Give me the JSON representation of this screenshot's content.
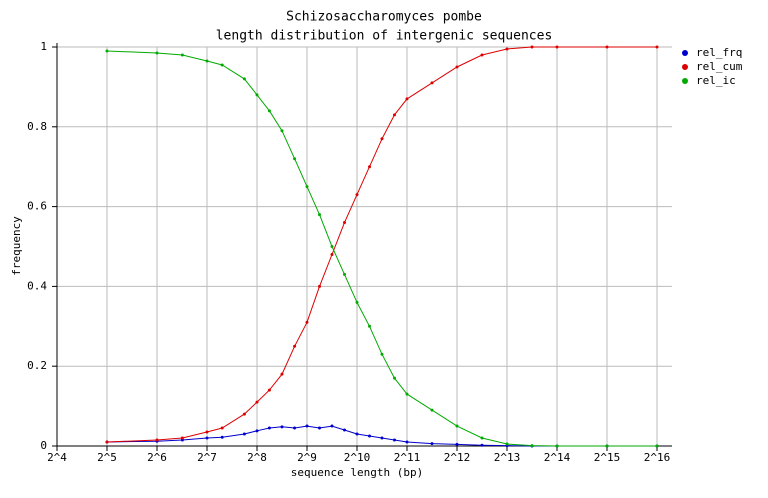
{
  "chart_data": {
    "type": "line",
    "title": "Schizosaccharomyces pombe",
    "subtitle": "length distribution of intergenic sequences",
    "x_label": "sequence length (bp)",
    "y_label": "frequency",
    "x_scale": "log2",
    "grid": true,
    "legend": "top-right",
    "x": [
      32,
      64,
      91,
      128,
      158,
      215,
      256,
      304,
      362,
      431,
      512,
      609,
      724,
      861,
      1024,
      1218,
      1448,
      1722,
      2048,
      2896,
      4096,
      5793,
      8192,
      11585,
      16384,
      32768,
      65536
    ],
    "series": [
      {
        "name": "rel_frq",
        "color": "#0000cc",
        "values": [
          0.01,
          0.012,
          0.015,
          0.02,
          0.022,
          0.03,
          0.038,
          0.045,
          0.048,
          0.045,
          0.05,
          0.045,
          0.05,
          0.04,
          0.03,
          0.025,
          0.02,
          0.015,
          0.01,
          0.006,
          0.004,
          0.002,
          0.001,
          0,
          0,
          0,
          0
        ]
      },
      {
        "name": "rel_cum",
        "color": "#dd0000",
        "values": [
          0.01,
          0.015,
          0.02,
          0.035,
          0.045,
          0.08,
          0.11,
          0.14,
          0.18,
          0.25,
          0.31,
          0.4,
          0.48,
          0.56,
          0.63,
          0.7,
          0.77,
          0.83,
          0.87,
          0.91,
          0.95,
          0.98,
          0.995,
          1,
          1,
          1,
          1
        ]
      },
      {
        "name": "rel_ic",
        "color": "#00aa00",
        "values": [
          0.99,
          0.985,
          0.98,
          0.965,
          0.955,
          0.92,
          0.88,
          0.84,
          0.79,
          0.72,
          0.65,
          0.58,
          0.5,
          0.43,
          0.36,
          0.3,
          0.23,
          0.17,
          0.13,
          0.09,
          0.05,
          0.02,
          0.005,
          0.001,
          0,
          0,
          0
        ]
      }
    ],
    "xlim": [
      16,
      65536
    ],
    "xticks": [
      {
        "value": 16,
        "label": "2^4"
      },
      {
        "value": 32,
        "label": "2^5"
      },
      {
        "value": 64,
        "label": "2^6"
      },
      {
        "value": 128,
        "label": "2^7"
      },
      {
        "value": 256,
        "label": "2^8"
      },
      {
        "value": 512,
        "label": "2^9"
      },
      {
        "value": 1024,
        "label": "2^10"
      },
      {
        "value": 2048,
        "label": "2^11"
      },
      {
        "value": 4096,
        "label": "2^12"
      },
      {
        "value": 8192,
        "label": "2^13"
      },
      {
        "value": 16384,
        "label": "2^14"
      },
      {
        "value": 32768,
        "label": "2^15"
      },
      {
        "value": 65536,
        "label": "2^16"
      }
    ],
    "ylim": [
      0,
      1
    ],
    "yticks": [
      0,
      0.2,
      0.4,
      0.6,
      0.8,
      1
    ]
  }
}
